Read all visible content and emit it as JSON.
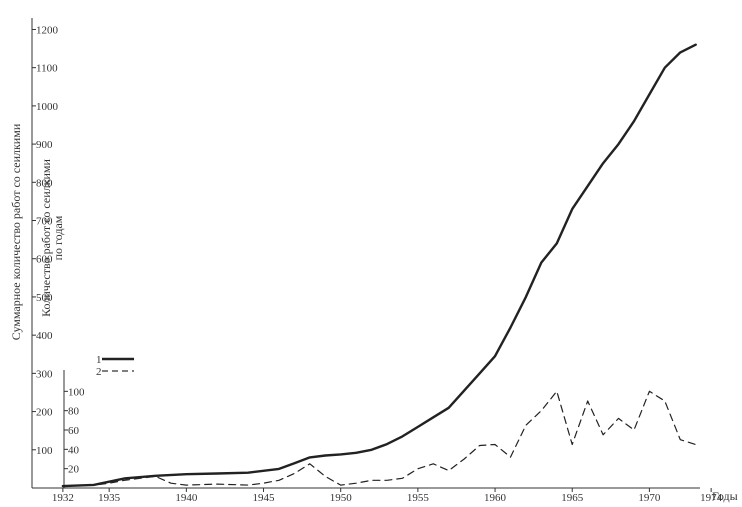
{
  "chart_data": {
    "type": "line",
    "xlabel": "Годы",
    "ylabel_total": "Суммарное количество работ со сеилкими",
    "ylabel_annual_line1": "Количество работ со сеилкими",
    "ylabel_annual_line2": "по годам",
    "x_ticks": [
      1932,
      1935,
      1940,
      1945,
      1950,
      1955,
      1960,
      1965,
      1970,
      1974
    ],
    "x_tick_labels": [
      "1932",
      "1935",
      "1940",
      "1945",
      "1950",
      "1955",
      "1960",
      "1965",
      "1970",
      "1974"
    ],
    "y_total_ticks": [
      100,
      200,
      300,
      400,
      500,
      600,
      700,
      800,
      900,
      1000,
      1100,
      1200
    ],
    "y_total_tick_labels": [
      "100",
      "200",
      "300",
      "400",
      "500",
      "600",
      "700",
      "800",
      "900",
      "1000",
      "1100",
      "1200"
    ],
    "y_annual_ticks": [
      20,
      40,
      60,
      80,
      100
    ],
    "y_annual_tick_labels": [
      "20",
      "40",
      "60",
      "80",
      "100"
    ],
    "xlim": [
      1930,
      1976
    ],
    "ylim_total": [
      0,
      1230
    ],
    "ylim_annual": [
      0,
      120
    ],
    "legend": {
      "position": "left",
      "items": [
        {
          "label": "1",
          "style": "solid"
        },
        {
          "label": "2",
          "style": "dashed"
        }
      ]
    },
    "series": [
      {
        "name": "1",
        "axis": "total",
        "style": "solid",
        "x": [
          1932,
          1934,
          1936,
          1938,
          1940,
          1942,
          1944,
          1946,
          1947,
          1948,
          1949,
          1950,
          1951,
          1952,
          1953,
          1954,
          1955,
          1956,
          1957,
          1958,
          1959,
          1960,
          1961,
          1962,
          1963,
          1964,
          1965,
          1966,
          1967,
          1968,
          1969,
          1970,
          1971,
          1972,
          1973
        ],
        "values": [
          5,
          8,
          25,
          32,
          36,
          38,
          40,
          50,
          65,
          80,
          85,
          88,
          92,
          100,
          115,
          135,
          160,
          185,
          210,
          255,
          300,
          345,
          420,
          500,
          590,
          640,
          730,
          790,
          850,
          900,
          960,
          1030,
          1100,
          1140,
          1160
        ]
      },
      {
        "name": "2",
        "axis": "annual",
        "style": "dashed",
        "x": [
          1932,
          1934,
          1935,
          1936,
          1937,
          1938,
          1939,
          1940,
          1942,
          1944,
          1945,
          1946,
          1947,
          1948,
          1949,
          1950,
          1951,
          1952,
          1953,
          1954,
          1955,
          1956,
          1957,
          1958,
          1959,
          1960,
          1961,
          1962,
          1963,
          1964,
          1965,
          1966,
          1967,
          1968,
          1969,
          1970,
          1971,
          1972,
          1973
        ],
        "values": [
          2,
          3,
          5,
          8,
          10,
          12,
          5,
          3,
          4,
          3,
          5,
          8,
          15,
          25,
          12,
          3,
          5,
          8,
          8,
          10,
          20,
          25,
          18,
          30,
          44,
          45,
          32,
          65,
          80,
          100,
          45,
          90,
          55,
          72,
          60,
          100,
          90,
          50,
          45
        ]
      }
    ]
  }
}
